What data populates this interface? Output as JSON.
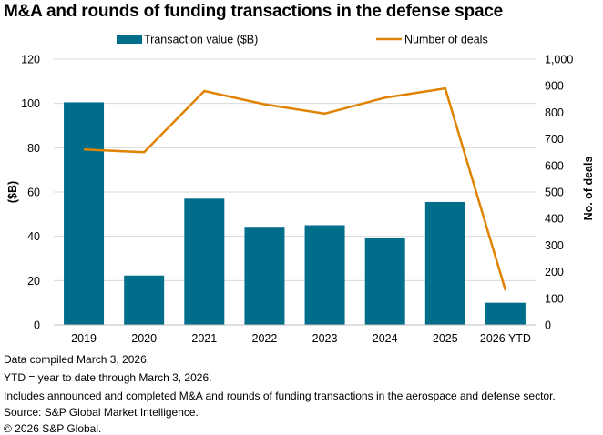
{
  "title": "M&A and rounds of funding transactions in the defense space",
  "chart_data": {
    "type": "bar+line",
    "categories": [
      "2019",
      "2020",
      "2021",
      "2022",
      "2023",
      "2024",
      "2025",
      "2026 YTD"
    ],
    "series": [
      {
        "name": "Transaction value ($B)",
        "type": "bar",
        "axis": "left",
        "color": "#006e8b",
        "values": [
          100.5,
          22.3,
          57.0,
          44.3,
          45.0,
          39.3,
          55.5,
          10.0
        ]
      },
      {
        "name": "Number of deals",
        "type": "line",
        "axis": "right",
        "color": "#e08300",
        "values": [
          660,
          650,
          880,
          830,
          795,
          855,
          890,
          130
        ]
      }
    ],
    "left_axis": {
      "label": "($B)",
      "ylim": [
        0,
        120
      ],
      "ticks": [
        "0",
        "20",
        "40",
        "60",
        "80",
        "100",
        "120"
      ]
    },
    "right_axis": {
      "label": "No. of deals",
      "ylim": [
        0,
        1000
      ],
      "ticks": [
        "0",
        "100",
        "200",
        "300",
        "400",
        "500",
        "600",
        "700",
        "800",
        "900",
        "1,000"
      ]
    },
    "legend_position": "top",
    "grid": true
  },
  "footnotes": [
    "Data compiled March 3, 2026.",
    "YTD = year to date through March 3, 2026.",
    "Includes announced and completed M&A and rounds of funding transactions in the aerospace and defense sector.",
    "Source: S&P Global Market Intelligence.",
    "© 2026 S&P Global."
  ]
}
